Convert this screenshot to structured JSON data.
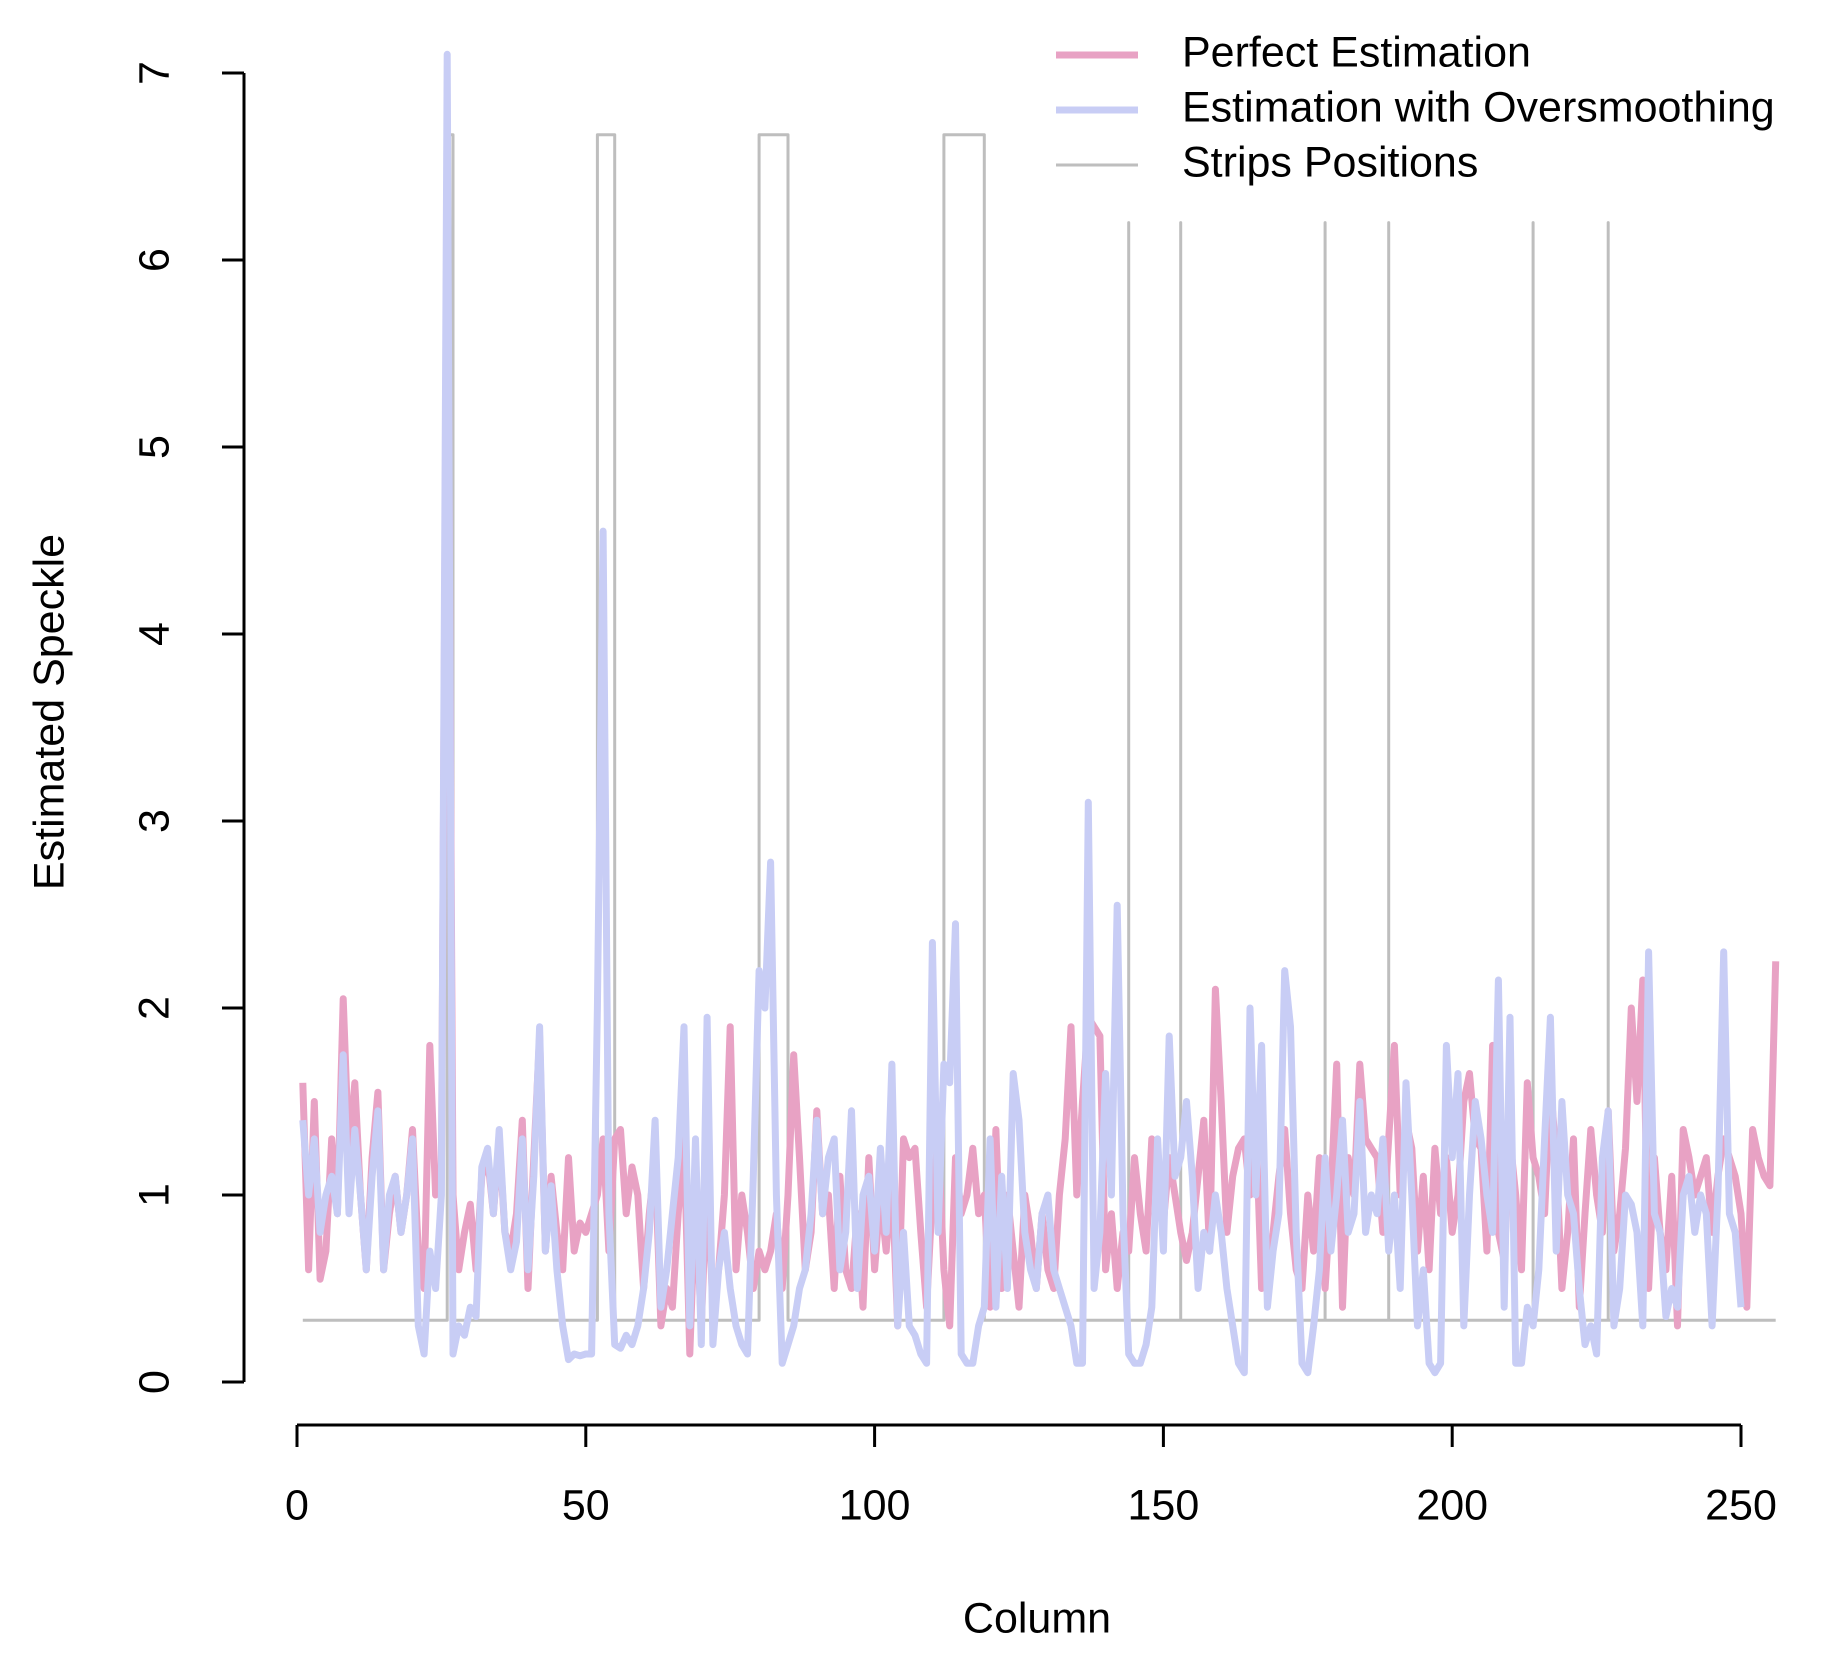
{
  "chart_data": {
    "type": "line",
    "xlabel": "Column",
    "ylabel": "Estimated Speckle",
    "xlim": [
      0,
      250
    ],
    "ylim": [
      0,
      7
    ],
    "xticks": [
      0,
      50,
      100,
      150,
      200,
      250
    ],
    "yticks": [
      0,
      1,
      2,
      3,
      4,
      5,
      6,
      7
    ],
    "legend": "top-right",
    "x": [
      1,
      2,
      3,
      4,
      5,
      6,
      7,
      8,
      9,
      10,
      11,
      12,
      13,
      14,
      15,
      16,
      17,
      18,
      19,
      20,
      21,
      22,
      23,
      24,
      25,
      26,
      27,
      28,
      29,
      30,
      31,
      32,
      33,
      34,
      35,
      36,
      37,
      38,
      39,
      40,
      41,
      42,
      43,
      44,
      45,
      46,
      47,
      48,
      49,
      50,
      51,
      52,
      53,
      54,
      55,
      56,
      57,
      58,
      59,
      60,
      61,
      62,
      63,
      64,
      65,
      66,
      67,
      68,
      69,
      70,
      71,
      72,
      73,
      74,
      75,
      76,
      77,
      78,
      79,
      80,
      81,
      82,
      83,
      84,
      85,
      86,
      87,
      88,
      89,
      90,
      91,
      92,
      93,
      94,
      95,
      96,
      97,
      98,
      99,
      100,
      101,
      102,
      103,
      104,
      105,
      106,
      107,
      108,
      109,
      110,
      111,
      112,
      113,
      114,
      115,
      116,
      117,
      118,
      119,
      120,
      121,
      122,
      123,
      124,
      125,
      126,
      127,
      128,
      129,
      130,
      131,
      132,
      133,
      134,
      135,
      136,
      137,
      138,
      139,
      140,
      141,
      142,
      143,
      144,
      145,
      146,
      147,
      148,
      149,
      150,
      151,
      152,
      153,
      154,
      155,
      156,
      157,
      158,
      159,
      160,
      161,
      162,
      163,
      164,
      165,
      166,
      167,
      168,
      169,
      170,
      171,
      172,
      173,
      174,
      175,
      176,
      177,
      178,
      179,
      180,
      181,
      182,
      183,
      184,
      185,
      186,
      187,
      188,
      189,
      190,
      191,
      192,
      193,
      194,
      195,
      196,
      197,
      198,
      199,
      200,
      201,
      202,
      203,
      204,
      205,
      206,
      207,
      208,
      209,
      210,
      211,
      212,
      213,
      214,
      215,
      216,
      217,
      218,
      219,
      220,
      221,
      222,
      223,
      224,
      225,
      226,
      227,
      228,
      229,
      230,
      231,
      232,
      233,
      234,
      235,
      236,
      237,
      238,
      239,
      240,
      241,
      242,
      243,
      244,
      245,
      246,
      247,
      248,
      249,
      250,
      251,
      252,
      253,
      254,
      255,
      256
    ],
    "series": [
      {
        "name": "Perfect Estimation",
        "color": "#e8a2c4",
        "values": [
          1.6,
          0.6,
          1.5,
          0.55,
          0.7,
          1.3,
          0.9,
          2.05,
          1.2,
          1.6,
          1.0,
          0.6,
          1.2,
          1.55,
          0.6,
          0.9,
          1.1,
          0.8,
          1.0,
          1.35,
          0.7,
          0.5,
          1.8,
          1.0,
          1.1,
          6.5,
          1.0,
          0.6,
          0.8,
          0.95,
          0.6,
          1.1,
          1.2,
          0.9,
          1.3,
          0.8,
          0.7,
          0.9,
          1.4,
          0.5,
          1.2,
          1.85,
          0.7,
          1.1,
          0.8,
          0.6,
          1.2,
          0.7,
          0.85,
          0.8,
          0.9,
          1.0,
          1.3,
          0.7,
          1.3,
          1.35,
          0.9,
          1.15,
          1.0,
          0.5,
          0.9,
          1.2,
          0.3,
          0.5,
          0.4,
          0.9,
          1.3,
          0.15,
          1.0,
          0.3,
          1.1,
          0.4,
          0.6,
          1.0,
          1.9,
          0.6,
          1.0,
          0.8,
          0.5,
          0.7,
          0.6,
          0.7,
          0.9,
          0.5,
          1.0,
          1.75,
          1.2,
          0.6,
          0.8,
          1.45,
          0.9,
          1.0,
          0.5,
          1.1,
          0.6,
          0.5,
          0.9,
          0.4,
          1.2,
          0.6,
          1.0,
          0.7,
          1.1,
          0.3,
          1.3,
          1.2,
          1.25,
          0.8,
          0.4,
          1.0,
          1.3,
          0.6,
          0.3,
          1.2,
          0.9,
          1.0,
          1.25,
          0.9,
          1.0,
          0.4,
          1.35,
          0.5,
          1.0,
          0.7,
          0.4,
          1.0,
          0.8,
          0.5,
          0.9,
          0.6,
          0.5,
          1.0,
          1.3,
          1.9,
          1.0,
          1.5,
          1.95,
          1.9,
          1.85,
          0.6,
          0.9,
          0.5,
          0.8,
          0.7,
          1.2,
          0.9,
          0.7,
          1.3,
          1.0,
          0.85,
          1.2,
          1.0,
          0.8,
          0.65,
          0.8,
          1.1,
          1.4,
          0.7,
          2.1,
          1.5,
          0.8,
          1.1,
          1.25,
          1.3,
          1.0,
          1.4,
          0.5,
          0.6,
          0.8,
          1.1,
          1.35,
          0.9,
          0.6,
          0.5,
          1.0,
          0.7,
          1.2,
          0.5,
          1.0,
          1.7,
          0.4,
          1.2,
          1.0,
          1.7,
          1.3,
          1.25,
          1.2,
          0.8,
          1.3,
          1.8,
          1.0,
          1.4,
          1.25,
          0.7,
          1.1,
          0.6,
          1.25,
          0.9,
          1.2,
          0.8,
          1.0,
          1.5,
          1.65,
          1.3,
          1.25,
          0.7,
          1.8,
          0.8,
          0.65,
          1.3,
          1.0,
          0.6,
          1.6,
          1.2,
          1.1,
          0.9,
          1.6,
          1.2,
          0.5,
          0.8,
          1.3,
          0.4,
          0.9,
          1.35,
          1.0,
          0.8,
          1.45,
          0.7,
          0.9,
          1.25,
          2.0,
          1.5,
          2.15,
          0.5,
          1.2,
          0.8,
          0.6,
          1.1,
          0.3,
          1.35,
          1.2,
          1.0,
          1.1,
          1.2,
          0.8,
          1.1,
          1.3,
          1.2,
          1.1,
          0.9,
          0.4,
          1.35,
          1.2,
          1.1,
          1.05,
          2.25
        ]
      },
      {
        "name": "Estimation with Oversmoothing",
        "color": "#c8cdf5",
        "values": [
          1.4,
          1.0,
          1.3,
          0.8,
          1.0,
          1.1,
          0.9,
          1.75,
          0.9,
          1.35,
          1.0,
          0.6,
          1.1,
          1.45,
          0.6,
          1.0,
          1.1,
          0.8,
          1.0,
          1.3,
          0.3,
          0.15,
          0.7,
          0.5,
          1.0,
          7.1,
          0.15,
          0.3,
          0.25,
          0.4,
          0.35,
          1.15,
          1.25,
          0.9,
          1.35,
          0.8,
          0.6,
          0.75,
          1.3,
          0.6,
          1.1,
          1.9,
          0.7,
          1.05,
          0.6,
          0.3,
          0.12,
          0.15,
          0.14,
          0.15,
          0.15,
          2.0,
          4.55,
          0.9,
          0.2,
          0.18,
          0.25,
          0.2,
          0.3,
          0.5,
          0.8,
          1.4,
          0.4,
          0.6,
          0.9,
          1.2,
          1.9,
          0.3,
          1.3,
          0.2,
          1.95,
          0.2,
          0.6,
          0.8,
          0.5,
          0.3,
          0.2,
          0.15,
          1.1,
          2.2,
          2.0,
          2.78,
          1.0,
          0.1,
          0.2,
          0.3,
          0.5,
          0.6,
          0.9,
          1.4,
          0.9,
          1.2,
          1.3,
          0.6,
          0.8,
          1.45,
          0.5,
          1.0,
          1.1,
          0.7,
          1.25,
          0.8,
          1.7,
          0.3,
          0.8,
          0.3,
          0.25,
          0.15,
          0.1,
          2.35,
          0.8,
          1.7,
          1.6,
          2.45,
          0.15,
          0.1,
          0.1,
          0.3,
          0.4,
          1.3,
          0.4,
          1.1,
          0.5,
          1.65,
          1.4,
          0.8,
          0.6,
          0.5,
          0.9,
          1.0,
          0.6,
          0.5,
          0.4,
          0.3,
          0.1,
          0.1,
          3.1,
          0.5,
          0.8,
          1.65,
          1.0,
          2.55,
          0.9,
          0.15,
          0.1,
          0.1,
          0.2,
          0.4,
          1.3,
          0.7,
          1.85,
          1.1,
          1.2,
          1.5,
          1.1,
          0.5,
          0.8,
          0.7,
          1.0,
          0.8,
          0.5,
          0.3,
          0.1,
          0.05,
          2.0,
          1.0,
          1.8,
          0.4,
          0.7,
          0.9,
          2.2,
          1.9,
          0.8,
          0.1,
          0.05,
          0.3,
          0.6,
          1.2,
          0.7,
          1.0,
          1.4,
          0.8,
          0.9,
          1.5,
          0.8,
          1.0,
          0.9,
          1.3,
          0.7,
          1.0,
          0.5,
          1.6,
          1.0,
          0.3,
          0.6,
          0.1,
          0.05,
          0.1,
          1.8,
          1.2,
          1.65,
          0.3,
          1.0,
          1.5,
          1.3,
          1.0,
          0.8,
          2.15,
          0.4,
          1.95,
          0.1,
          0.1,
          0.4,
          0.3,
          0.6,
          1.3,
          1.95,
          0.7,
          1.5,
          1.0,
          0.9,
          0.5,
          0.2,
          0.3,
          0.15,
          1.2,
          1.45,
          0.3,
          0.5,
          1.0,
          0.95,
          0.8,
          0.3,
          2.3,
          0.9,
          0.8,
          0.35,
          0.5,
          0.4,
          1.0,
          1.1,
          0.8,
          1.0,
          0.9,
          0.3,
          1.0,
          2.3,
          0.9,
          0.8,
          0.4,
          null,
          null,
          null,
          null,
          null,
          null
        ]
      },
      {
        "name": "Strips Positions",
        "color": "#bebebe",
        "x": [
          1,
          26,
          26,
          27,
          27,
          52,
          52,
          55,
          55,
          80,
          80,
          85,
          85,
          112,
          112,
          119,
          119,
          144,
          144,
          144,
          153,
          153,
          153,
          178,
          178,
          178,
          189,
          189,
          189,
          214,
          214,
          214,
          227,
          227,
          227,
          256
        ],
        "values": [
          0.33,
          0.33,
          6.67,
          6.67,
          0.33,
          0.33,
          6.67,
          6.67,
          0.33,
          0.33,
          6.67,
          6.67,
          0.33,
          0.33,
          6.67,
          6.67,
          0.33,
          0.33,
          6.2,
          0.33,
          0.33,
          6.2,
          0.33,
          0.33,
          6.2,
          0.33,
          0.33,
          6.2,
          0.33,
          0.33,
          6.2,
          0.33,
          0.33,
          6.2,
          0.33,
          0.33
        ]
      }
    ]
  }
}
